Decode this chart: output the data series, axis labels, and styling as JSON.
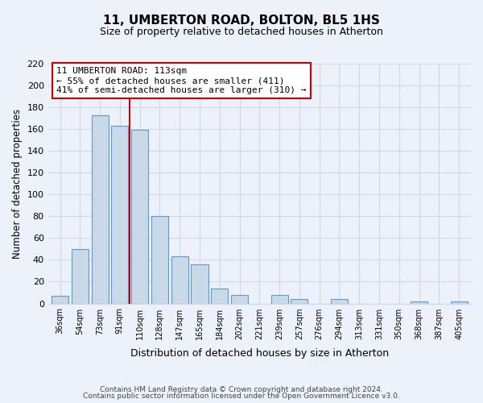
{
  "title": "11, UMBERTON ROAD, BOLTON, BL5 1HS",
  "subtitle": "Size of property relative to detached houses in Atherton",
  "xlabel": "Distribution of detached houses by size in Atherton",
  "ylabel": "Number of detached properties",
  "footer_line1": "Contains HM Land Registry data © Crown copyright and database right 2024.",
  "footer_line2": "Contains public sector information licensed under the Open Government Licence v3.0.",
  "categories": [
    "36sqm",
    "54sqm",
    "73sqm",
    "91sqm",
    "110sqm",
    "128sqm",
    "147sqm",
    "165sqm",
    "184sqm",
    "202sqm",
    "221sqm",
    "239sqm",
    "257sqm",
    "276sqm",
    "294sqm",
    "313sqm",
    "331sqm",
    "350sqm",
    "368sqm",
    "387sqm",
    "405sqm"
  ],
  "values": [
    7,
    50,
    173,
    163,
    159,
    80,
    43,
    36,
    14,
    8,
    0,
    8,
    4,
    0,
    4,
    0,
    0,
    0,
    2,
    0,
    2
  ],
  "bar_color": "#c9d9e8",
  "bar_edge_color": "#5b9bd5",
  "highlight_line_color": "#cc0000",
  "annotation_title": "11 UMBERTON ROAD: 113sqm",
  "annotation_line1": "← 55% of detached houses are smaller (411)",
  "annotation_line2": "41% of semi-detached houses are larger (310) →",
  "annotation_box_color": "#ffffff",
  "annotation_box_edge_color": "#cc0000",
  "ylim": [
    0,
    220
  ],
  "yticks": [
    0,
    20,
    40,
    60,
    80,
    100,
    120,
    140,
    160,
    180,
    200,
    220
  ],
  "background_color": "#edf1f9",
  "highlight_bar_index": 4,
  "grid_color": "#d0d8e8"
}
